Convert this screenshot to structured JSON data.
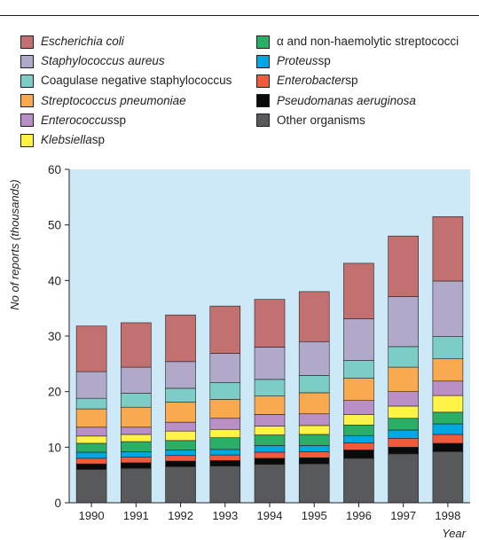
{
  "chart_data": {
    "type": "bar",
    "stacked": true,
    "categories": [
      "1990",
      "1991",
      "1992",
      "1993",
      "1994",
      "1995",
      "1996",
      "1997",
      "1998"
    ],
    "xlabel": "Year",
    "ylabel": "No of reports (thousands)",
    "ylim": [
      0,
      60
    ],
    "yticks": [
      "0",
      "10",
      "20",
      "30",
      "40",
      "50",
      "60"
    ],
    "grid": false,
    "legend_position": "top",
    "series": [
      {
        "name": "Other organisms",
        "color": "#58595b",
        "values": [
          6.0,
          6.2,
          6.5,
          6.6,
          6.9,
          7.0,
          8.0,
          8.8,
          9.2
        ]
      },
      {
        "name": "Pseudomanas aeruginosa",
        "color": "#0a0a0a",
        "values": [
          1.0,
          1.0,
          1.0,
          1.0,
          1.1,
          1.1,
          1.5,
          1.2,
          1.5
        ]
      },
      {
        "name": "Enterobacter sp",
        "color": "#f15a3a",
        "values": [
          1.0,
          1.0,
          1.0,
          1.0,
          1.1,
          1.1,
          1.3,
          1.6,
          1.6
        ]
      },
      {
        "name": "Proteus sp",
        "color": "#00a8e1",
        "values": [
          1.1,
          1.0,
          1.0,
          1.0,
          1.2,
          1.1,
          1.3,
          1.5,
          1.9
        ]
      },
      {
        "name": "α and non-haemolytic streptococci",
        "color": "#2bae66",
        "values": [
          1.6,
          1.8,
          1.7,
          2.1,
          1.9,
          2.0,
          1.9,
          2.1,
          2.1
        ]
      },
      {
        "name": "Klebsiella sp",
        "color": "#fff345",
        "values": [
          1.3,
          1.3,
          1.7,
          1.5,
          1.6,
          1.6,
          1.9,
          2.2,
          3.0
        ]
      },
      {
        "name": "Enterococcus sp",
        "color": "#b98fc6",
        "values": [
          1.6,
          1.3,
          1.6,
          2.0,
          2.1,
          2.1,
          2.5,
          2.6,
          2.6
        ]
      },
      {
        "name": "Streptococcus pneumoniae",
        "color": "#f9a94e",
        "values": [
          3.3,
          3.6,
          3.6,
          3.4,
          3.3,
          3.8,
          4.0,
          4.4,
          4.0
        ]
      },
      {
        "name": "Coagulase negative staphylococcus",
        "color": "#7ccdc5",
        "values": [
          1.9,
          2.5,
          2.5,
          3.0,
          3.0,
          3.1,
          3.2,
          3.7,
          4.0
        ]
      },
      {
        "name": "Staphylococcus aureus",
        "color": "#b0a9c9",
        "values": [
          4.8,
          4.7,
          4.8,
          5.3,
          5.8,
          6.1,
          7.5,
          9.0,
          10.0
        ]
      },
      {
        "name": "Escherichia coli",
        "color": "#c27070",
        "values": [
          8.2,
          8.0,
          8.4,
          8.5,
          8.6,
          9.0,
          10.0,
          10.9,
          11.6
        ]
      }
    ]
  },
  "legend": {
    "col1": [
      {
        "name": "Escherichia coli",
        "italic": true,
        "suffix": "",
        "color": "#c27070"
      },
      {
        "name": "Staphylococcus aureus",
        "italic": true,
        "suffix": "",
        "color": "#b0a9c9"
      },
      {
        "name": "Coagulase negative staphylococcus",
        "italic": false,
        "suffix": "",
        "color": "#7ccdc5"
      },
      {
        "name": "Streptococcus pneumoniae",
        "italic": true,
        "suffix": "",
        "color": "#f9a94e"
      },
      {
        "name": "Enterococcus",
        "italic": true,
        "suffix": " sp",
        "color": "#b98fc6"
      },
      {
        "name": "Klebsiella",
        "italic": true,
        "suffix": " sp",
        "color": "#fff345"
      }
    ],
    "col2": [
      {
        "name": "α and non-haemolytic streptococci",
        "italic": false,
        "suffix": "",
        "color": "#2bae66"
      },
      {
        "name": "Proteus",
        "italic": true,
        "suffix": " sp",
        "color": "#00a8e1"
      },
      {
        "name": "Enterobacter",
        "italic": true,
        "suffix": " sp",
        "color": "#f15a3a"
      },
      {
        "name": "Pseudomanas aeruginosa",
        "italic": true,
        "suffix": "",
        "color": "#0a0a0a"
      },
      {
        "name": "Other organisms",
        "italic": false,
        "suffix": "",
        "color": "#58595b"
      }
    ]
  },
  "colors": {
    "plot_background": "#cde9f7",
    "axis": "#231f20"
  }
}
